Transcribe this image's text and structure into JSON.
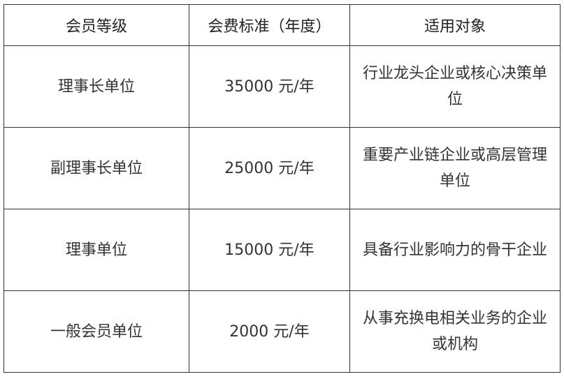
{
  "table": {
    "headers": [
      "会员等级",
      "会费标准（年度）",
      "适用对象"
    ],
    "rows": [
      {
        "level": "理事长单位",
        "fee": "35000 元/年",
        "target": "行业龙头企业或核心决策单位"
      },
      {
        "level": "副理事长单位",
        "fee": "25000 元/年",
        "target": "重要产业链企业或高层管理单位"
      },
      {
        "level": "理事单位",
        "fee": "15000 元/年",
        "target": "具备行业影响力的骨干企业"
      },
      {
        "level": "一般会员单位",
        "fee": "2000 元/年",
        "target": "从事充换电相关业务的企业或机构"
      }
    ]
  }
}
